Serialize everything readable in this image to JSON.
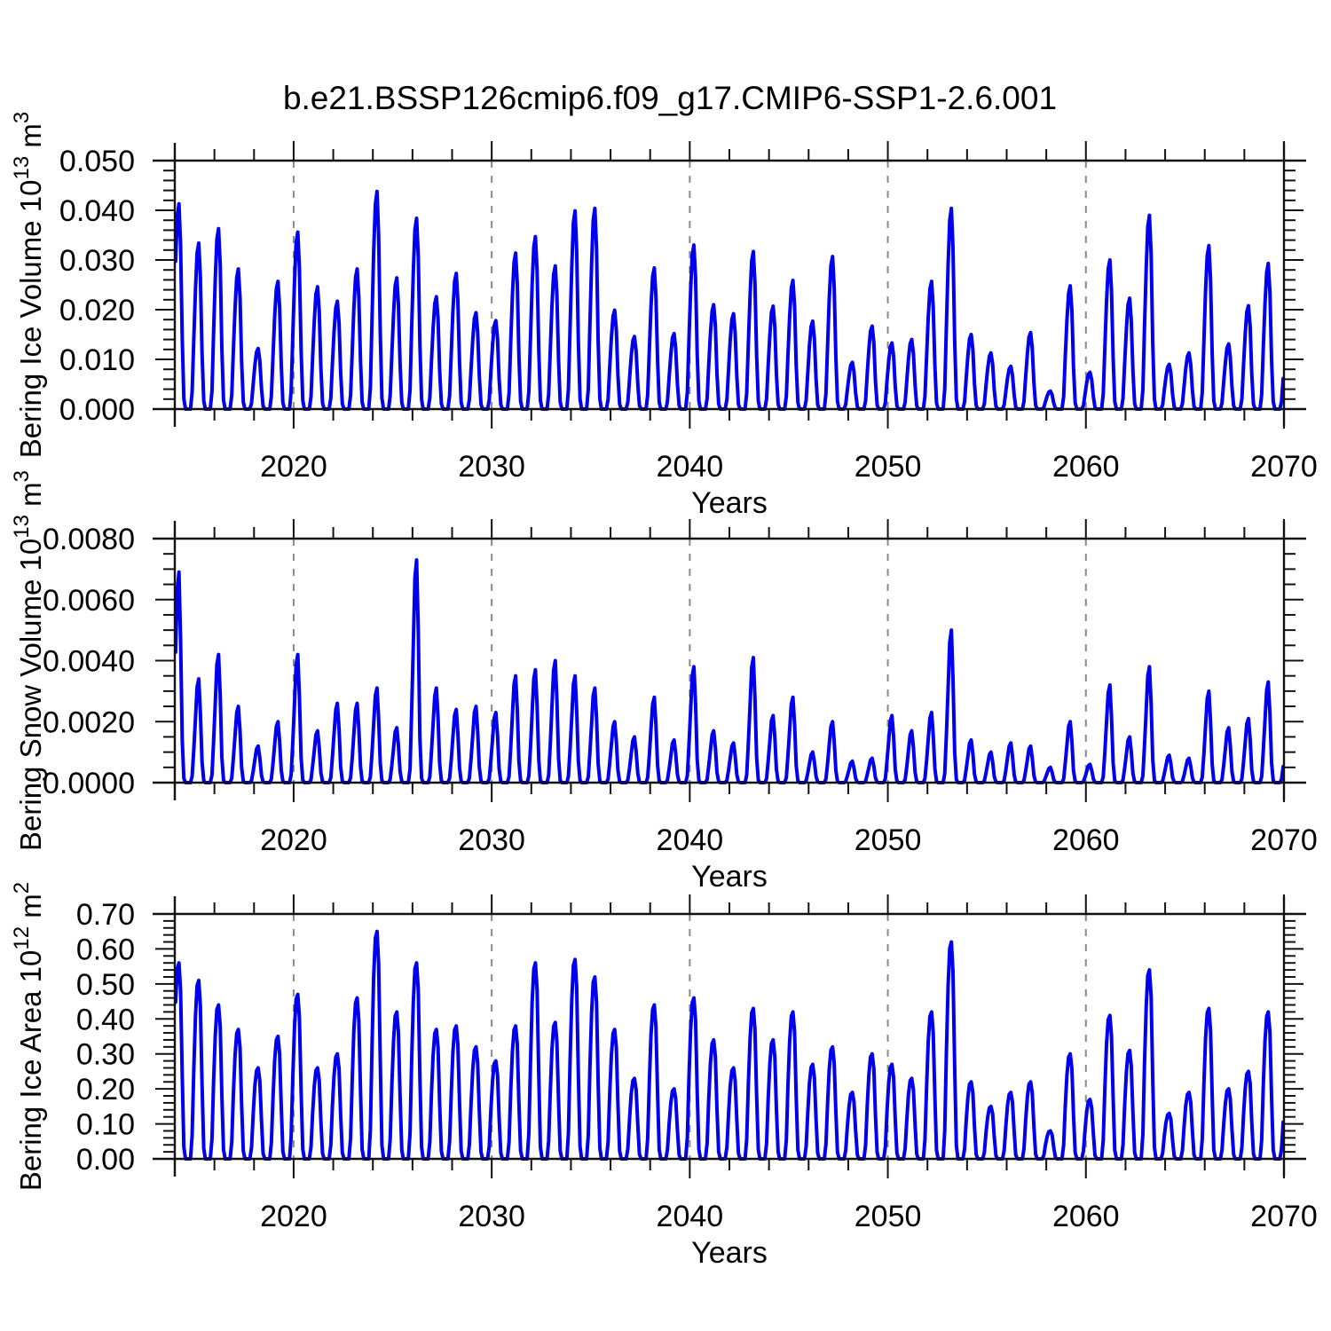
{
  "chart_data": {
    "type": "line",
    "title": "b.e21.BSSP126cmip6.f09_g17.CMIP6-SSP1-2.6.001",
    "line_color": "#0000ee",
    "grid_color": "#8a8a8a",
    "axis_color": "#111111",
    "xlabel": "Years",
    "xlim": [
      2014,
      2070
    ],
    "x_major_ticks": [
      2020,
      2030,
      2040,
      2050,
      2060,
      2070
    ],
    "x_tick_labels": [
      "2020",
      "2030",
      "2040",
      "2050",
      "2060",
      "2070"
    ],
    "x_minor_step": 2,
    "x_gridline_years": [
      2020,
      2030,
      2040,
      2050,
      2060
    ],
    "grid_style": "dashed",
    "legend": "none",
    "panels": [
      {
        "id": "ice-volume",
        "ylabel": "Bering Ice Volume 10^13 m^3",
        "ylabel_parts": [
          "Bering Ice Volume 10",
          "13",
          " m",
          "3"
        ],
        "xlabel": "Years",
        "ylim": [
          0,
          0.05
        ],
        "y_major_step": 0.01,
        "y_minor_step": 0.002,
        "y_tick_labels": [
          "0.000",
          "0.010",
          "0.020",
          "0.030",
          "0.040",
          "0.050"
        ],
        "seasonal_shape": {
          "jan_jun": [
            0.72,
            0.94,
            1.0,
            0.8,
            0.34,
            0.05
          ],
          "jul_oct": 0,
          "nov_dec": [
            0.1,
            0.42
          ]
        },
        "annual_peaks": {
          "start_year": 2014,
          "values": [
            0.0413,
            0.0334,
            0.0363,
            0.0282,
            0.0122,
            0.0257,
            0.0356,
            0.0246,
            0.0217,
            0.0282,
            0.0438,
            0.0264,
            0.0384,
            0.0226,
            0.0273,
            0.0194,
            0.0178,
            0.0314,
            0.0347,
            0.0288,
            0.0399,
            0.0404,
            0.0199,
            0.0146,
            0.0284,
            0.0152,
            0.033,
            0.021,
            0.0192,
            0.0317,
            0.0207,
            0.0259,
            0.0177,
            0.0307,
            0.0094,
            0.0167,
            0.0133,
            0.014,
            0.0257,
            0.0404,
            0.015,
            0.0113,
            0.0086,
            0.0154,
            0.0036,
            0.0248,
            0.0074,
            0.03,
            0.0223,
            0.039,
            0.009,
            0.0113,
            0.0329,
            0.0131,
            0.0208,
            0.0293
          ]
        }
      },
      {
        "id": "snow-volume",
        "ylabel": "Bering Snow Volume 10^13 m^3",
        "ylabel_parts": [
          "Bering Snow Volume 10",
          "13",
          " m",
          "3"
        ],
        "xlabel": "Years",
        "ylim": [
          0,
          0.008
        ],
        "y_major_step": 0.002,
        "y_minor_step": 0.0005,
        "y_tick_labels": [
          "0.0000",
          "0.0020",
          "0.0040",
          "0.0060",
          "0.0080"
        ],
        "seasonal_shape": {
          "jan_jun": [
            0.62,
            0.92,
            1.0,
            0.68,
            0.2,
            0.02
          ],
          "jul_oct": 0,
          "nov_dec": [
            0.06,
            0.32
          ]
        },
        "annual_peaks": {
          "start_year": 2014,
          "values": [
            0.0069,
            0.0034,
            0.0042,
            0.0025,
            0.0012,
            0.002,
            0.0042,
            0.0017,
            0.0026,
            0.0026,
            0.0031,
            0.0018,
            0.0073,
            0.0031,
            0.0024,
            0.0025,
            0.0023,
            0.0035,
            0.0037,
            0.004,
            0.0035,
            0.0031,
            0.002,
            0.0015,
            0.0028,
            0.0014,
            0.0038,
            0.0017,
            0.0013,
            0.0041,
            0.0022,
            0.0028,
            0.001,
            0.002,
            0.0007,
            0.0008,
            0.0022,
            0.0017,
            0.0023,
            0.005,
            0.0014,
            0.001,
            0.0013,
            0.0012,
            0.0005,
            0.002,
            0.0006,
            0.0032,
            0.0015,
            0.0038,
            0.0009,
            0.0008,
            0.003,
            0.0018,
            0.0021,
            0.0033
          ]
        }
      },
      {
        "id": "ice-area",
        "ylabel": "Bering Ice Area 10^12 m^2",
        "ylabel_parts": [
          "Bering Ice Area 10",
          "12",
          " m",
          "2"
        ],
        "xlabel": "Years",
        "ylim": [
          0,
          0.7
        ],
        "y_major_step": 0.1,
        "y_minor_step": 0.02,
        "y_tick_labels": [
          "0.00",
          "0.10",
          "0.20",
          "0.30",
          "0.40",
          "0.50",
          "0.60",
          "0.70"
        ],
        "seasonal_shape": {
          "jan_jun": [
            0.8,
            0.97,
            1.0,
            0.86,
            0.42,
            0.06
          ],
          "jul_oct": 0,
          "nov_dec": [
            0.13,
            0.5
          ]
        },
        "annual_peaks": {
          "start_year": 2014,
          "values": [
            0.56,
            0.51,
            0.44,
            0.37,
            0.26,
            0.35,
            0.47,
            0.26,
            0.3,
            0.46,
            0.65,
            0.42,
            0.56,
            0.37,
            0.38,
            0.32,
            0.28,
            0.38,
            0.56,
            0.39,
            0.57,
            0.52,
            0.37,
            0.23,
            0.44,
            0.2,
            0.46,
            0.34,
            0.26,
            0.43,
            0.34,
            0.42,
            0.27,
            0.32,
            0.19,
            0.3,
            0.27,
            0.23,
            0.42,
            0.62,
            0.22,
            0.15,
            0.19,
            0.22,
            0.08,
            0.3,
            0.17,
            0.41,
            0.31,
            0.54,
            0.13,
            0.19,
            0.43,
            0.2,
            0.25,
            0.42
          ]
        }
      }
    ]
  }
}
